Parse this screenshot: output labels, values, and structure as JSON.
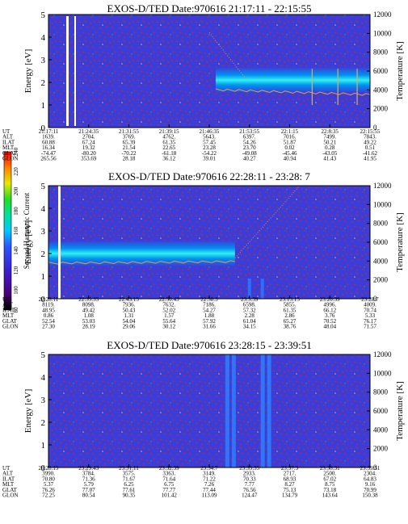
{
  "chart_data": [
    {
      "type": "heatmap",
      "title": "EXOS-D/TED  Date:970616  21:17:11 - 22:15:55",
      "ylabel": "Energy [eV]",
      "y2label": "Temperature [K]",
      "ylim": [
        0,
        5
      ],
      "y2lim": [
        0,
        12000
      ],
      "yticks": [
        "0",
        "1",
        "2",
        "3",
        "4",
        "5"
      ],
      "y2ticks": [
        "0",
        "2000",
        "4000",
        "6000",
        "8000",
        "10000",
        "12000"
      ],
      "band_center_ev": 2.1,
      "band_start_fraction": 0.52,
      "orbit_rows": [
        "UT",
        "ALT",
        "ILAT",
        "MLT",
        "GLAT",
        "GLON"
      ],
      "orbit_table": [
        [
          "21:17:11",
          "1639.",
          "60.88",
          "16.34",
          "-74.47",
          "265.56"
        ],
        [
          "21:24:35",
          "2704.",
          "67.24",
          "19.32",
          "-80.20",
          "353.69"
        ],
        [
          "21:31:55",
          "3769.",
          "65.39",
          "21.54",
          "-70.22",
          "28.18"
        ],
        [
          "21:39:15",
          "4762.",
          "61.35",
          "22.65",
          "-61.18",
          "36.12"
        ],
        [
          "21:46:35",
          "5643.",
          "57.45",
          "23.28",
          "-54.22",
          "39.01"
        ],
        [
          "21:53:55",
          "6397.",
          "54.26",
          "23.70",
          "-49.08",
          "40.27"
        ],
        [
          "22:1:15",
          "7016.",
          "51.87",
          "0.02",
          "-45.46",
          "40.94"
        ],
        [
          "22:8:35",
          "7499.",
          "50.21",
          "0.28",
          "-43.05",
          "41.43"
        ],
        [
          "22:15:55",
          "7843.",
          "49.22",
          "0.51",
          "-41.62",
          "41.95"
        ]
      ]
    },
    {
      "type": "heatmap",
      "title": "EXOS-D/TED  Date:970616  22:28:11 - 23:28: 7",
      "ylabel": "Energy [eV]",
      "y2label": "Temperature [K]",
      "ylim": [
        0,
        5
      ],
      "y2lim": [
        0,
        12000
      ],
      "yticks": [
        "0",
        "1",
        "2",
        "3",
        "4",
        "5"
      ],
      "y2ticks": [
        "0",
        "2000",
        "4000",
        "6000",
        "8000",
        "10000",
        "12000"
      ],
      "band_center_ev": 2.0,
      "band_end_fraction": 0.58,
      "orbit_rows": [
        "UT",
        "ALT",
        "ILAT",
        "MLT",
        "GLAT",
        "GLON"
      ],
      "orbit_table": [
        [
          "22:28:11",
          "8119.",
          "48.95",
          "0.86",
          "52.54",
          "27.30"
        ],
        [
          "22:35:35",
          "8098.",
          "49.42",
          "1.08",
          "53.03",
          "28.19"
        ],
        [
          "22:43:15",
          "7936.",
          "50.43",
          "1.31",
          "54.04",
          "29.06"
        ],
        [
          "22:50:43",
          "7632.",
          "52.02",
          "1.57",
          "55.64",
          "30.12"
        ],
        [
          "22:58:3",
          "7186.",
          "54.27",
          "1.88",
          "57.92",
          "31.66"
        ],
        [
          "23:5:39",
          "6598.",
          "57.32",
          "2.28",
          "61.04",
          "34.15"
        ],
        [
          "23:13:15",
          "5855.",
          "61.35",
          "2.86",
          "65.27",
          "38.76"
        ],
        [
          "23:20:39",
          "4996.",
          "66.12",
          "3.76",
          "70.52",
          "48.04"
        ],
        [
          "23:28:7",
          "4009.",
          "70.74",
          "5.33",
          "76.17",
          "71.57"
        ]
      ]
    },
    {
      "type": "heatmap",
      "title": "EXOS-D/TED  Date:970616  23:28:15 - 23:39:51",
      "ylabel": "Energy [eV]",
      "y2label": "Temperature [K]",
      "ylim": [
        0,
        5
      ],
      "y2lim": [
        0,
        12000
      ],
      "yticks": [
        "0",
        "1",
        "2",
        "3",
        "4",
        "5"
      ],
      "y2ticks": [
        "0",
        "2000",
        "4000",
        "6000",
        "8000",
        "10000",
        "12000"
      ],
      "orbit_rows": [
        "UT",
        "ALT",
        "ILAT",
        "MLT",
        "GLAT",
        "GLON"
      ],
      "orbit_table": [
        [
          "23:28:15",
          "3990.",
          "70.80",
          "5.37",
          "76.26",
          "72.25"
        ],
        [
          "23:29:43",
          "3784.",
          "71.36",
          "5.79",
          "77.07",
          "80.54"
        ],
        [
          "23:31:11",
          "3575.",
          "71.67",
          "6.25",
          "77.61",
          "90.35"
        ],
        [
          "23:32:39",
          "3363.",
          "71.64",
          "6.75",
          "77.77",
          "101.42"
        ],
        [
          "23:34:7",
          "3149.",
          "71.22",
          "7.26",
          "77.44",
          "113.09"
        ],
        [
          "23:35:35",
          "2933.",
          "70.33",
          "7.77",
          "76.56",
          "124.47"
        ],
        [
          "23:37:3",
          "2717.",
          "68.93",
          "8.27",
          "75.13",
          "134.79"
        ],
        [
          "23:38:31",
          "2500.",
          "67.02",
          "8.75",
          "73.18",
          "143.64"
        ],
        [
          "23:39:51",
          "2304.",
          "64.83",
          "9.16",
          "70.99",
          "150.38"
        ]
      ]
    }
  ],
  "colorbar": {
    "label": "Second Harmonic Current",
    "ticks": [
      "80",
      "100",
      "120",
      "140",
      "160",
      "180",
      "200",
      "220",
      "240"
    ],
    "colors": [
      "#000000",
      "#4a0078",
      "#3a1fd0",
      "#2a55ff",
      "#00c8ff",
      "#00e0a0",
      "#22dd22",
      "#e8e800",
      "#ff8000",
      "#ff0000"
    ]
  }
}
